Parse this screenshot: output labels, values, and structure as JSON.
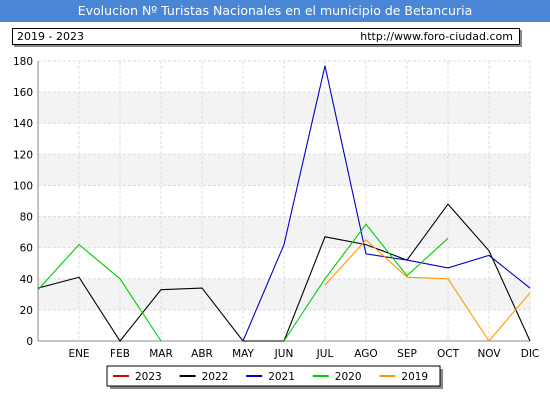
{
  "header": {
    "title": "Evolucion Nº Turistas Nacionales en el municipio de Betancuria",
    "period": "2019 - 2023",
    "url": "http://www.foro-ciudad.com"
  },
  "chart_data": {
    "type": "line",
    "categories": [
      "",
      "ENE",
      "FEB",
      "MAR",
      "ABR",
      "MAY",
      "JUN",
      "JUL",
      "AGO",
      "SEP",
      "OCT",
      "NOV",
      "DIC"
    ],
    "y_ticks": [
      0,
      20,
      40,
      60,
      80,
      100,
      120,
      140,
      160,
      180
    ],
    "ylim": [
      0,
      180
    ],
    "grid": true,
    "legend_position": "bottom",
    "series": [
      {
        "name": "2023",
        "color": "#dd0000",
        "values": [
          null,
          null,
          null,
          null,
          null,
          null,
          null,
          null,
          null,
          null,
          null,
          null,
          null
        ]
      },
      {
        "name": "2022",
        "color": "#000000",
        "values": [
          34,
          41,
          0,
          33,
          34,
          0,
          0,
          67,
          62,
          52,
          88,
          58,
          0
        ]
      },
      {
        "name": "2021",
        "color": "#0000cc",
        "values": [
          null,
          null,
          null,
          null,
          null,
          0,
          62,
          177,
          56,
          52,
          47,
          55,
          34
        ]
      },
      {
        "name": "2020",
        "color": "#00cc00",
        "values": [
          33,
          62,
          40,
          0,
          null,
          null,
          0,
          40,
          75,
          42,
          66,
          null,
          null
        ]
      },
      {
        "name": "2019",
        "color": "#ff9900",
        "values": [
          null,
          null,
          null,
          null,
          null,
          null,
          null,
          36,
          65,
          41,
          40,
          0,
          31
        ]
      }
    ]
  }
}
